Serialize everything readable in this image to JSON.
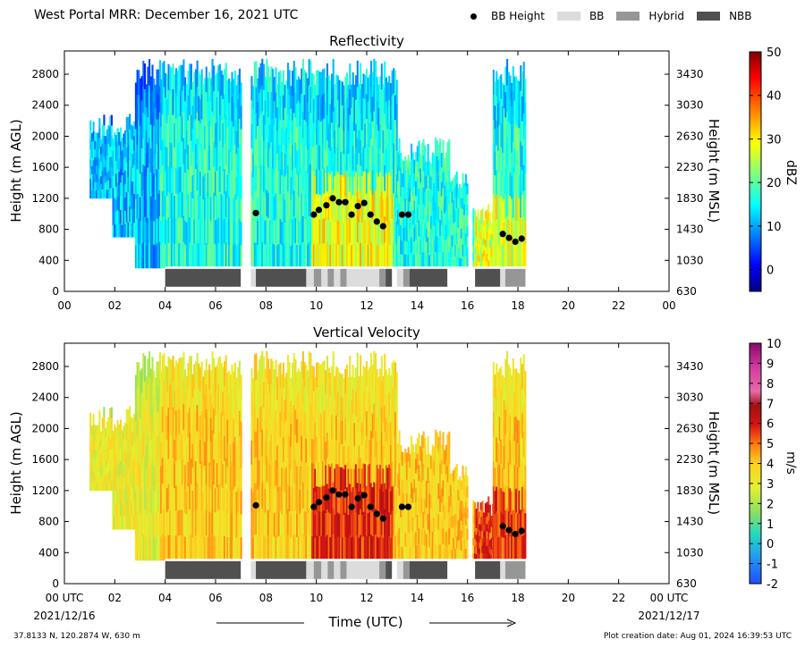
{
  "header": {
    "title": "West Portal MRR:  December 16, 2021 UTC",
    "legend": [
      {
        "label": "BB Height",
        "kind": "dot",
        "color": "#000000"
      },
      {
        "label": "BB",
        "kind": "swatch",
        "color": "#dcdcdc"
      },
      {
        "label": "Hybrid",
        "kind": "swatch",
        "color": "#969696"
      },
      {
        "label": "NBB",
        "kind": "swatch",
        "color": "#505050"
      }
    ]
  },
  "footer": {
    "location": "37.8133 N, 120.2874 W, 630 m",
    "created": "Plot creation date: Aug 01, 2024 16:39:53 UTC",
    "xlabel": "Time (UTC)",
    "date_start": "2021/12/16",
    "date_end": "2021/12/17"
  },
  "chart_data": [
    {
      "type": "heatmap",
      "title": "Reflectivity",
      "xlabel": "",
      "ylabel": "Height (m AGL)",
      "ylabel_right": "Height (m MSL)",
      "xlim": [
        0,
        24
      ],
      "ylim": [
        0,
        3100
      ],
      "x_ticks": [
        "00",
        "02",
        "04",
        "06",
        "08",
        "10",
        "12",
        "14",
        "16",
        "18",
        "20",
        "22",
        "00"
      ],
      "y_ticks": [
        0,
        400,
        800,
        1200,
        1600,
        2000,
        2400,
        2800
      ],
      "y_ticks_right": [
        630,
        1030,
        1430,
        1830,
        2230,
        2630,
        3030,
        3430
      ],
      "colorbar": {
        "label": "dBZ",
        "min": -5,
        "max": 50,
        "ticks": [
          0,
          10,
          20,
          30,
          40,
          50
        ],
        "colormap": "jet"
      },
      "bb_height": {
        "x": [
          7.6,
          9.9,
          10.1,
          10.4,
          10.65,
          10.9,
          11.15,
          11.4,
          11.65,
          11.9,
          12.15,
          12.4,
          12.65,
          13.4,
          13.65,
          17.4,
          17.65,
          17.9,
          18.15
        ],
        "y": [
          1010,
          990,
          1050,
          1110,
          1200,
          1150,
          1150,
          990,
          1100,
          1140,
          990,
          900,
          840,
          990,
          990,
          740,
          690,
          640,
          680
        ]
      }
    },
    {
      "type": "heatmap",
      "title": "Vertical Velocity",
      "xlabel": "Time (UTC)",
      "ylabel": "Height (m AGL)",
      "ylabel_right": "Height (m MSL)",
      "xlim": [
        0,
        24
      ],
      "ylim": [
        0,
        3100
      ],
      "x_ticks": [
        "00 UTC",
        "02",
        "04",
        "06",
        "08",
        "10",
        "12",
        "14",
        "16",
        "18",
        "20",
        "22",
        "00 UTC"
      ],
      "y_ticks": [
        0,
        400,
        800,
        1200,
        1600,
        2000,
        2400,
        2800
      ],
      "y_ticks_right": [
        630,
        1030,
        1430,
        1830,
        2230,
        2630,
        3030,
        3430
      ],
      "colorbar": {
        "label": "m/s",
        "min": -2,
        "max": 10,
        "ticks": [
          -2,
          -1,
          0,
          1,
          2,
          3,
          4,
          5,
          6,
          7,
          8,
          9,
          10
        ],
        "colormap": "velocity"
      },
      "bb_height": {
        "x": [
          7.6,
          9.9,
          10.1,
          10.4,
          10.65,
          10.9,
          11.15,
          11.4,
          11.65,
          11.9,
          12.15,
          12.4,
          12.65,
          13.4,
          13.65,
          17.4,
          17.65,
          17.9,
          18.15
        ],
        "y": [
          1010,
          990,
          1050,
          1110,
          1200,
          1150,
          1150,
          990,
          1100,
          1140,
          990,
          900,
          840,
          990,
          990,
          740,
          690,
          640,
          680
        ]
      }
    }
  ],
  "bb_type_segments": [
    {
      "start": 4.0,
      "end": 7.0,
      "type": "NBB"
    },
    {
      "start": 7.4,
      "end": 7.6,
      "type": "BB"
    },
    {
      "start": 7.6,
      "end": 9.6,
      "type": "NBB"
    },
    {
      "start": 9.6,
      "end": 9.9,
      "type": "BB"
    },
    {
      "start": 9.9,
      "end": 10.2,
      "type": "Hybrid"
    },
    {
      "start": 10.2,
      "end": 10.45,
      "type": "BB"
    },
    {
      "start": 10.45,
      "end": 10.7,
      "type": "Hybrid"
    },
    {
      "start": 10.7,
      "end": 10.95,
      "type": "BB"
    },
    {
      "start": 10.95,
      "end": 11.2,
      "type": "Hybrid"
    },
    {
      "start": 11.2,
      "end": 12.5,
      "type": "BB"
    },
    {
      "start": 12.5,
      "end": 12.75,
      "type": "Hybrid"
    },
    {
      "start": 12.75,
      "end": 13.0,
      "type": "NBB"
    },
    {
      "start": 13.2,
      "end": 13.45,
      "type": "BB"
    },
    {
      "start": 13.45,
      "end": 13.7,
      "type": "Hybrid"
    },
    {
      "start": 13.7,
      "end": 15.2,
      "type": "NBB"
    },
    {
      "start": 16.3,
      "end": 17.3,
      "type": "NBB"
    },
    {
      "start": 17.3,
      "end": 17.5,
      "type": "BB"
    },
    {
      "start": 17.5,
      "end": 18.3,
      "type": "Hybrid"
    }
  ],
  "data_extent": {
    "segments": [
      {
        "start": 1.0,
        "end": 1.9,
        "top": 2300,
        "bottom": 1200
      },
      {
        "start": 1.9,
        "end": 2.8,
        "top": 2300,
        "bottom": 700
      },
      {
        "start": 2.8,
        "end": 3.8,
        "top": 3000,
        "bottom": 300
      },
      {
        "start": 3.8,
        "end": 7.0,
        "top": 3000,
        "bottom": 300
      },
      {
        "start": 7.4,
        "end": 13.2,
        "top": 3000,
        "bottom": 300
      },
      {
        "start": 13.2,
        "end": 15.3,
        "top": 2000,
        "bottom": 300
      },
      {
        "start": 15.3,
        "end": 16.0,
        "top": 1600,
        "bottom": 300
      },
      {
        "start": 16.2,
        "end": 17.0,
        "top": 1200,
        "bottom": 300
      },
      {
        "start": 17.0,
        "end": 18.3,
        "top": 3000,
        "bottom": 300
      }
    ]
  }
}
